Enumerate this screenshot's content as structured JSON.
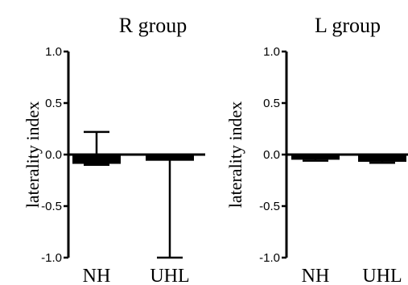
{
  "chart_data": [
    {
      "type": "bar",
      "title": "R group",
      "ylabel": "laterality index",
      "xlabel": "",
      "ylim": [
        -1.0,
        1.0
      ],
      "yticks": [
        "1.0",
        "0.5",
        "0.0",
        "-0.5",
        "-1.0"
      ],
      "ytick_values": [
        1.0,
        0.5,
        0.0,
        -0.5,
        -1.0
      ],
      "categories": [
        "NH",
        "UHL"
      ],
      "values": [
        -0.09,
        -0.06
      ],
      "error_high": [
        0.22,
        -0.03
      ],
      "error_low": [
        -0.1,
        -1.0
      ],
      "bar_color": "#000000"
    },
    {
      "type": "bar",
      "title": "L group",
      "ylabel": "laterality index",
      "xlabel": "",
      "ylim": [
        -1.0,
        1.0
      ],
      "yticks": [
        "1.0",
        "0.5",
        "0.0",
        "-0.5",
        "-1.0"
      ],
      "ytick_values": [
        1.0,
        0.5,
        0.0,
        -0.5,
        -1.0
      ],
      "categories": [
        "NH",
        "UHL"
      ],
      "values": [
        -0.05,
        -0.07
      ],
      "error_high": [
        -0.01,
        -0.04
      ],
      "error_low": [
        -0.06,
        -0.08
      ],
      "bar_color": "#000000"
    }
  ]
}
